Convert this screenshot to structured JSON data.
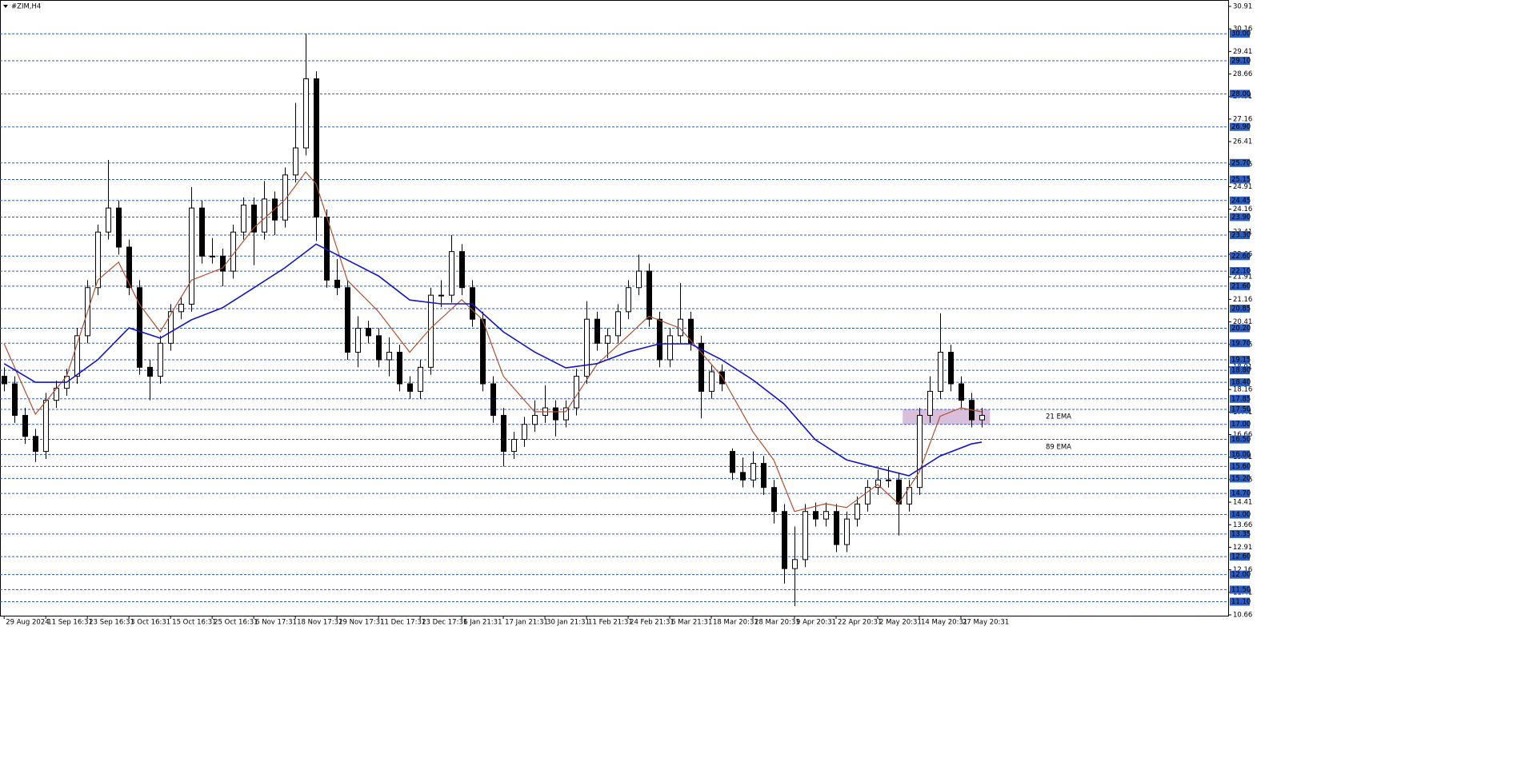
{
  "chart_data": {
    "type": "candlestick",
    "title": "#ZIM,H4",
    "ylim": [
      10.66,
      30.91
    ],
    "yticks": [
      30.91,
      30.16,
      29.41,
      28.66,
      27.91,
      27.16,
      26.41,
      25.66,
      24.91,
      24.16,
      23.41,
      22.66,
      21.91,
      21.16,
      20.41,
      19.66,
      18.91,
      18.16,
      17.41,
      16.66,
      15.91,
      15.16,
      14.41,
      13.66,
      12.91,
      12.16,
      11.41,
      10.66
    ],
    "xlim": [
      -0.4,
      117.7
    ],
    "xticks": [
      {
        "value": 0,
        "label": "29 Aug 2024"
      },
      {
        "value": 4,
        "label": "11 Sep 16:31"
      },
      {
        "value": 8,
        "label": "23 Sep 16:31"
      },
      {
        "value": 12,
        "label": "3 Oct 16:31"
      },
      {
        "value": 16,
        "label": "15 Oct 16:31"
      },
      {
        "value": 20,
        "label": "25 Oct 16:31"
      },
      {
        "value": 24,
        "label": "6 Nov 17:31"
      },
      {
        "value": 28,
        "label": "18 Nov 17:31"
      },
      {
        "value": 32,
        "label": "29 Nov 17:31"
      },
      {
        "value": 36,
        "label": "11 Dec 17:31"
      },
      {
        "value": 40,
        "label": "23 Dec 17:31"
      },
      {
        "value": 44,
        "label": "6 Jan 21:31"
      },
      {
        "value": 48,
        "label": "17 Jan 21:31"
      },
      {
        "value": 52,
        "label": "30 Jan 21:31"
      },
      {
        "value": 56,
        "label": "11 Feb 21:31"
      },
      {
        "value": 60,
        "label": "24 Feb 21:31"
      },
      {
        "value": 64,
        "label": "6 Mar 21:31"
      },
      {
        "value": 68,
        "label": "18 Mar 20:31"
      },
      {
        "value": 72,
        "label": "28 Mar 20:31"
      },
      {
        "value": 76,
        "label": "9 Apr 20:31"
      },
      {
        "value": 80,
        "label": "22 Apr 20:31"
      },
      {
        "value": 84,
        "label": "2 May 20:31"
      },
      {
        "value": 88,
        "label": "14 May 20:31"
      },
      {
        "value": 92,
        "label": "27 May 20:31"
      }
    ],
    "candles": [
      [
        18.6,
        18.9,
        18.1,
        18.35
      ],
      [
        18.35,
        18.6,
        17.05,
        17.3
      ],
      [
        17.3,
        17.55,
        16.35,
        16.6
      ],
      [
        16.6,
        16.85,
        15.75,
        16.1
      ],
      [
        16.1,
        18.05,
        15.85,
        17.8
      ],
      [
        17.8,
        18.45,
        17.55,
        18.2
      ],
      [
        18.2,
        18.85,
        17.95,
        18.6
      ],
      [
        18.6,
        20.2,
        18.35,
        19.95
      ],
      [
        19.95,
        21.8,
        19.7,
        21.55
      ],
      [
        21.55,
        23.65,
        21.3,
        23.4
      ],
      [
        23.4,
        25.8,
        23.15,
        24.2
      ],
      [
        24.2,
        24.45,
        22.65,
        22.9
      ],
      [
        22.9,
        23.15,
        21.3,
        21.55
      ],
      [
        21.55,
        21.8,
        18.65,
        18.9
      ],
      [
        18.9,
        19.15,
        17.8,
        18.6
      ],
      [
        18.6,
        19.95,
        18.35,
        19.7
      ],
      [
        19.7,
        21.0,
        19.45,
        20.75
      ],
      [
        20.75,
        21.25,
        20.5,
        21.0
      ],
      [
        21.0,
        24.9,
        20.75,
        24.2
      ],
      [
        24.2,
        24.45,
        22.35,
        22.6
      ],
      [
        22.6,
        23.2,
        22.35,
        22.6
      ],
      [
        22.6,
        22.85,
        21.6,
        22.1
      ],
      [
        22.1,
        23.65,
        21.85,
        23.4
      ],
      [
        23.4,
        24.55,
        23.15,
        24.3
      ],
      [
        24.3,
        24.55,
        22.3,
        23.4
      ],
      [
        23.4,
        25.1,
        23.15,
        24.5
      ],
      [
        24.5,
        24.75,
        23.3,
        23.8
      ],
      [
        23.8,
        25.55,
        23.55,
        25.3
      ],
      [
        25.3,
        27.7,
        25.05,
        26.2
      ],
      [
        26.2,
        30.0,
        25.95,
        28.5
      ],
      [
        28.5,
        28.75,
        23.1,
        23.9
      ],
      [
        23.9,
        24.15,
        21.55,
        21.8
      ],
      [
        21.8,
        22.5,
        21.3,
        21.55
      ],
      [
        21.55,
        21.8,
        19.15,
        19.4
      ],
      [
        19.4,
        20.6,
        18.9,
        20.2
      ],
      [
        20.2,
        20.45,
        19.7,
        19.95
      ],
      [
        19.95,
        20.2,
        18.9,
        19.15
      ],
      [
        19.15,
        19.9,
        18.6,
        19.4
      ],
      [
        19.4,
        19.65,
        18.1,
        18.35
      ],
      [
        18.35,
        18.6,
        17.85,
        18.1
      ],
      [
        18.1,
        19.15,
        17.85,
        18.9
      ],
      [
        18.9,
        21.55,
        18.65,
        21.3
      ],
      [
        21.3,
        21.8,
        20.9,
        21.3
      ],
      [
        21.3,
        23.3,
        21.05,
        22.75
      ],
      [
        22.75,
        23.0,
        21.3,
        21.55
      ],
      [
        21.55,
        21.8,
        20.25,
        20.5
      ],
      [
        20.5,
        20.75,
        18.1,
        18.35
      ],
      [
        18.35,
        18.6,
        17.05,
        17.3
      ],
      [
        17.3,
        17.55,
        15.6,
        16.1
      ],
      [
        16.1,
        16.75,
        15.85,
        16.5
      ],
      [
        16.5,
        17.25,
        16.25,
        17.0
      ],
      [
        17.0,
        17.8,
        16.75,
        17.3
      ],
      [
        17.3,
        18.3,
        17.05,
        17.55
      ],
      [
        17.55,
        17.8,
        16.6,
        17.15
      ],
      [
        17.15,
        17.8,
        16.9,
        17.55
      ],
      [
        17.55,
        18.85,
        17.3,
        18.6
      ],
      [
        18.6,
        21.1,
        18.35,
        20.5
      ],
      [
        20.5,
        20.75,
        19.45,
        19.7
      ],
      [
        19.7,
        20.2,
        19.2,
        19.95
      ],
      [
        19.95,
        21.0,
        19.7,
        20.75
      ],
      [
        20.75,
        21.8,
        20.5,
        21.55
      ],
      [
        21.55,
        22.65,
        21.3,
        22.1
      ],
      [
        22.1,
        22.35,
        20.25,
        20.5
      ],
      [
        20.5,
        20.75,
        18.9,
        19.15
      ],
      [
        19.15,
        20.2,
        18.9,
        19.95
      ],
      [
        19.95,
        21.7,
        19.7,
        20.5
      ],
      [
        20.5,
        20.75,
        19.45,
        19.7
      ],
      [
        19.7,
        19.95,
        17.2,
        18.1
      ],
      [
        18.1,
        19.0,
        17.85,
        18.75
      ],
      [
        18.75,
        19.0,
        18.1,
        18.35
      ],
      [
        16.1,
        16.2,
        15.15,
        15.4
      ],
      [
        15.4,
        15.9,
        14.9,
        15.15
      ],
      [
        15.15,
        16.1,
        14.9,
        15.7
      ],
      [
        15.7,
        15.95,
        14.65,
        14.9
      ],
      [
        14.9,
        15.15,
        13.7,
        14.1
      ],
      [
        14.1,
        14.35,
        11.7,
        12.2
      ],
      [
        12.2,
        13.6,
        10.95,
        12.5
      ],
      [
        12.5,
        14.35,
        12.25,
        14.1
      ],
      [
        14.1,
        14.4,
        13.6,
        13.85
      ],
      [
        13.85,
        14.4,
        13.6,
        14.1
      ],
      [
        14.1,
        14.35,
        12.75,
        13.0
      ],
      [
        13.0,
        14.1,
        12.75,
        13.85
      ],
      [
        13.85,
        14.6,
        13.6,
        14.35
      ],
      [
        14.35,
        15.15,
        14.1,
        14.9
      ],
      [
        14.9,
        15.5,
        14.65,
        15.15
      ],
      [
        15.15,
        15.6,
        14.9,
        15.15
      ],
      [
        15.15,
        15.4,
        13.3,
        14.35
      ],
      [
        14.35,
        15.15,
        14.1,
        14.9
      ],
      [
        14.9,
        17.55,
        14.65,
        17.3
      ],
      [
        17.3,
        18.6,
        17.05,
        18.1
      ],
      [
        18.1,
        20.7,
        17.85,
        19.4
      ],
      [
        19.4,
        19.65,
        18.1,
        18.35
      ],
      [
        18.35,
        18.6,
        17.55,
        17.8
      ],
      [
        17.8,
        18.05,
        16.9,
        17.15
      ],
      [
        17.15,
        17.55,
        16.9,
        17.3
      ]
    ],
    "bull_color": "#ffffff",
    "bear_color": "#000000",
    "series": [
      {
        "name": "21 EMA",
        "color": "#b4502c",
        "x": [
          0,
          3,
          6,
          9,
          11,
          13,
          15,
          18,
          21,
          24,
          27,
          29,
          30,
          33,
          36,
          39,
          41,
          44,
          46,
          48,
          51,
          54,
          57,
          60,
          62,
          65,
          67,
          69,
          72,
          74,
          76,
          79,
          81,
          84,
          86,
          88,
          90,
          92,
          94
        ],
        "values": [
          19.68,
          17.34,
          18.6,
          21.8,
          22.4,
          21.0,
          20.08,
          21.8,
          22.2,
          23.54,
          24.47,
          25.4,
          25.0,
          21.8,
          20.75,
          19.4,
          20.2,
          21.15,
          20.48,
          18.6,
          17.42,
          17.42,
          19.0,
          19.95,
          20.6,
          20.2,
          19.4,
          18.6,
          16.75,
          15.82,
          14.1,
          14.36,
          14.23,
          15.0,
          14.36,
          15.42,
          17.27,
          17.55,
          17.42
        ]
      },
      {
        "name": "89 EMA",
        "color": "#1414c8",
        "x": [
          0,
          3,
          6,
          9,
          12,
          15,
          18,
          21,
          24,
          27,
          30,
          33,
          36,
          39,
          42,
          45,
          48,
          51,
          54,
          57,
          60,
          63,
          66,
          69,
          72,
          75,
          78,
          81,
          84,
          87,
          90,
          93,
          94
        ],
        "values": [
          19.02,
          18.4,
          18.4,
          19.15,
          20.21,
          19.87,
          20.48,
          20.88,
          21.54,
          22.21,
          23.0,
          22.47,
          21.94,
          21.14,
          21.01,
          21.01,
          20.08,
          19.41,
          18.88,
          19.02,
          19.41,
          19.68,
          19.68,
          19.15,
          18.48,
          17.68,
          16.49,
          15.82,
          15.55,
          15.29,
          15.95,
          16.35,
          16.41
        ]
      }
    ],
    "levels": [
      {
        "value": 30,
        "label": "30.00"
      },
      {
        "value": 29.1,
        "label": "29.10"
      },
      {
        "value": 28,
        "label": "28.00"
      },
      {
        "value": 26.9,
        "label": "26.90"
      },
      {
        "value": 25.7,
        "label": "25.70"
      },
      25.15,
      24.45,
      {
        "value": 23.9,
        "label": "23.90"
      },
      {
        "value": 23.3,
        "label": "23.30"
      },
      {
        "value": 22.6,
        "label": "22.60"
      },
      {
        "value": 22.1,
        "label": "22.10"
      },
      {
        "value": 21.6,
        "label": "21.60"
      },
      20.85,
      {
        "value": 20.2,
        "label": "20.20"
      },
      {
        "value": 19.7,
        "label": "19.70"
      },
      19.15,
      {
        "value": 18.8,
        "label": "18.80"
      },
      {
        "value": 18.4,
        "label": "18.40"
      },
      17.85,
      {
        "value": 17.5,
        "label": "17.50"
      },
      {
        "value": 17,
        "label": "17.00"
      },
      {
        "value": 16.5,
        "label": "16.50"
      },
      {
        "value": 16,
        "label": "16.00"
      },
      {
        "value": 15.6,
        "label": "15.60"
      },
      {
        "value": 15.2,
        "label": "15.20"
      },
      {
        "value": 14.7,
        "label": "14.70"
      },
      {
        "value": 14,
        "label": "14.00"
      },
      13.35,
      {
        "value": 12.6,
        "label": "12.60"
      },
      {
        "value": 12,
        "label": "12.00"
      },
      {
        "value": 11.5,
        "label": "11.50"
      },
      {
        "value": 11.1,
        "label": "11.10"
      }
    ],
    "level_color": "#2b5cc0",
    "zone": {
      "x": [
        86.4,
        94.8
      ],
      "y": [
        17.0,
        17.5
      ],
      "color": "#d9bfdc"
    }
  }
}
